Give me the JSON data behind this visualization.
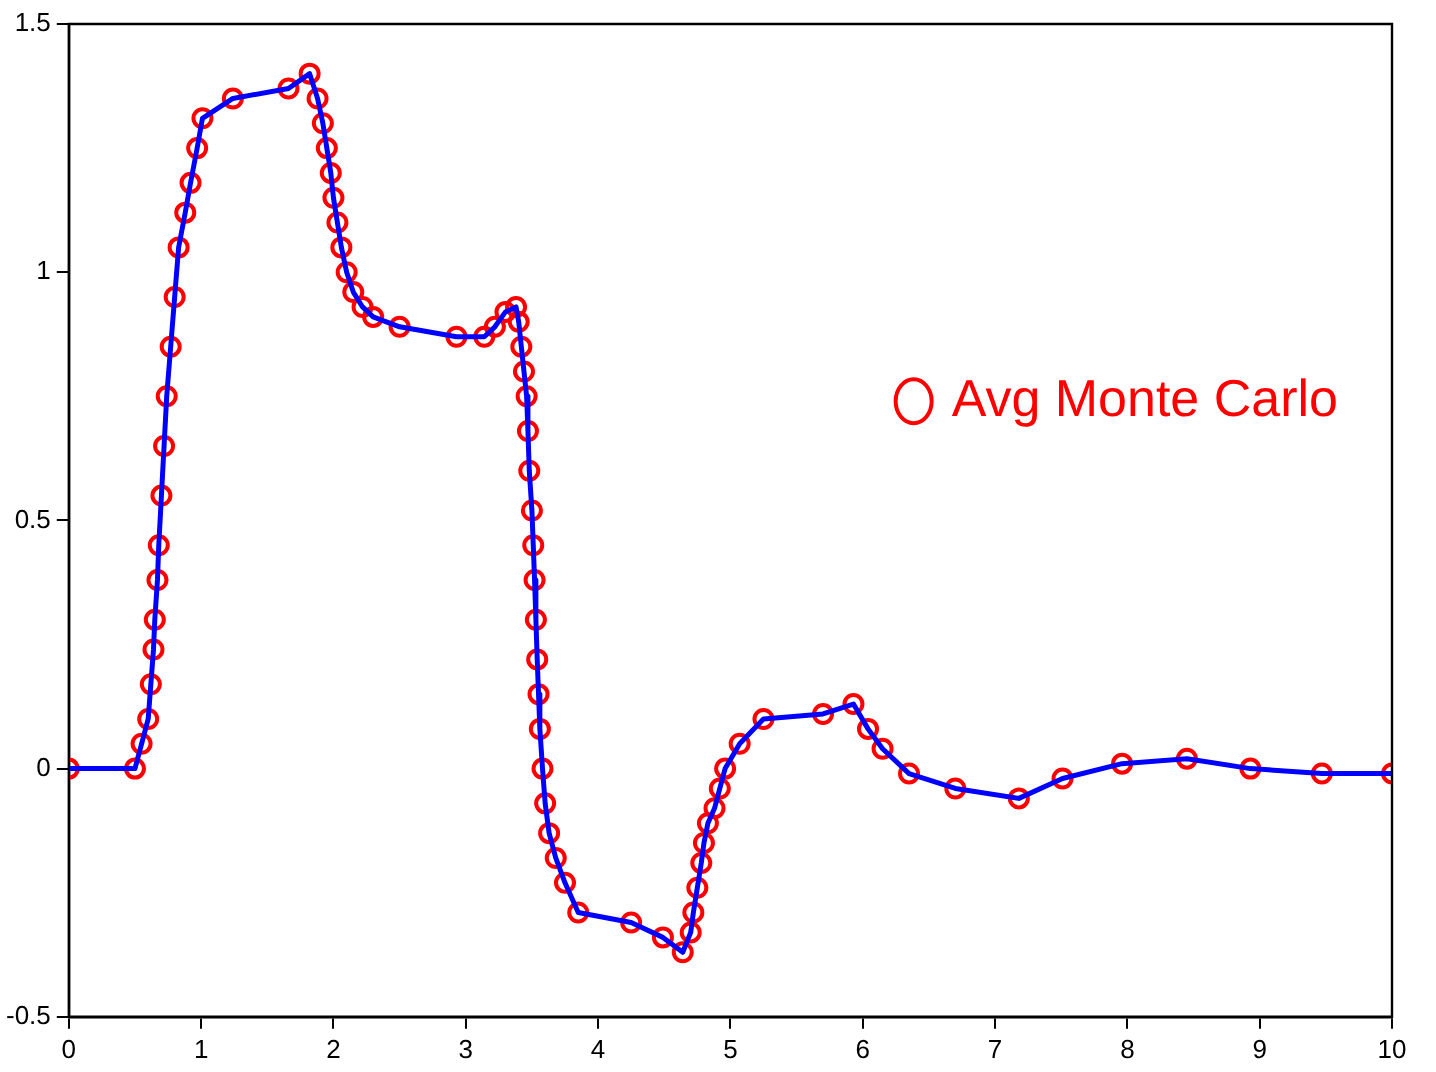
{
  "chart_data": {
    "type": "line",
    "xlim": [
      0,
      10
    ],
    "ylim": [
      -0.5,
      1.5
    ],
    "xticks": [
      0,
      1,
      2,
      3,
      4,
      5,
      6,
      7,
      8,
      9,
      10
    ],
    "yticks": [
      -0.5,
      0,
      0.5,
      1,
      1.5
    ],
    "grid": false,
    "legend": "right",
    "x": [
      0,
      0.5,
      0.55,
      0.6,
      0.62,
      0.64,
      0.65,
      0.67,
      0.68,
      0.7,
      0.72,
      0.74,
      0.77,
      0.8,
      0.83,
      0.88,
      0.92,
      0.97,
      1.01,
      1.24,
      1.66,
      1.82,
      1.88,
      1.92,
      1.95,
      1.98,
      2.0,
      2.03,
      2.06,
      2.1,
      2.15,
      2.22,
      2.3,
      2.5,
      2.93,
      3.14,
      3.22,
      3.3,
      3.38,
      3.4,
      3.42,
      3.44,
      3.46,
      3.47,
      3.48,
      3.5,
      3.51,
      3.52,
      3.53,
      3.54,
      3.55,
      3.56,
      3.58,
      3.6,
      3.63,
      3.68,
      3.75,
      3.85,
      4.25,
      4.49,
      4.64,
      4.7,
      4.72,
      4.75,
      4.78,
      4.8,
      4.83,
      4.88,
      4.92,
      4.96,
      5.07,
      5.25,
      5.7,
      5.93,
      6.04,
      6.15,
      6.35,
      6.7,
      7.18,
      7.51,
      7.96,
      8.45,
      8.93,
      9.47,
      10
    ],
    "series": [
      {
        "type": "line",
        "color": "#0000ff",
        "marker": "none",
        "values": [
          0,
          0,
          0.05,
          0.1,
          0.17,
          0.24,
          0.3,
          0.38,
          0.45,
          0.55,
          0.65,
          0.75,
          0.85,
          0.95,
          1.05,
          1.12,
          1.18,
          1.25,
          1.31,
          1.35,
          1.37,
          1.4,
          1.35,
          1.3,
          1.25,
          1.2,
          1.15,
          1.1,
          1.05,
          1.0,
          0.96,
          0.93,
          0.91,
          0.89,
          0.87,
          0.87,
          0.89,
          0.92,
          0.93,
          0.9,
          0.85,
          0.8,
          0.75,
          0.68,
          0.6,
          0.52,
          0.45,
          0.38,
          0.3,
          0.22,
          0.15,
          0.08,
          0.0,
          -0.07,
          -0.13,
          -0.18,
          -0.23,
          -0.29,
          -0.31,
          -0.34,
          -0.37,
          -0.33,
          -0.29,
          -0.24,
          -0.19,
          -0.15,
          -0.11,
          -0.08,
          -0.04,
          0.0,
          0.05,
          0.1,
          0.11,
          0.13,
          0.08,
          0.04,
          -0.01,
          -0.04,
          -0.06,
          -0.02,
          0.01,
          0.02,
          0.0,
          -0.01,
          -0.01
        ]
      },
      {
        "type": "scatter",
        "name": "Avg Monte Carlo",
        "color": "#ff0000",
        "marker": "circle",
        "values": [
          0,
          0,
          0.05,
          0.1,
          0.17,
          0.24,
          0.3,
          0.38,
          0.45,
          0.55,
          0.65,
          0.75,
          0.85,
          0.95,
          1.05,
          1.12,
          1.18,
          1.25,
          1.31,
          1.35,
          1.37,
          1.4,
          1.35,
          1.3,
          1.25,
          1.2,
          1.15,
          1.1,
          1.05,
          1.0,
          0.96,
          0.93,
          0.91,
          0.89,
          0.87,
          0.87,
          0.89,
          0.92,
          0.93,
          0.9,
          0.85,
          0.8,
          0.75,
          0.68,
          0.6,
          0.52,
          0.45,
          0.38,
          0.3,
          0.22,
          0.15,
          0.08,
          0.0,
          -0.07,
          -0.13,
          -0.18,
          -0.23,
          -0.29,
          -0.31,
          -0.34,
          -0.37,
          -0.33,
          -0.29,
          -0.24,
          -0.19,
          -0.15,
          -0.11,
          -0.08,
          -0.04,
          0.0,
          0.05,
          0.1,
          0.11,
          0.13,
          0.08,
          0.04,
          -0.01,
          -0.04,
          -0.06,
          -0.02,
          0.01,
          0.02,
          0.0,
          -0.01,
          -0.01
        ]
      }
    ]
  }
}
